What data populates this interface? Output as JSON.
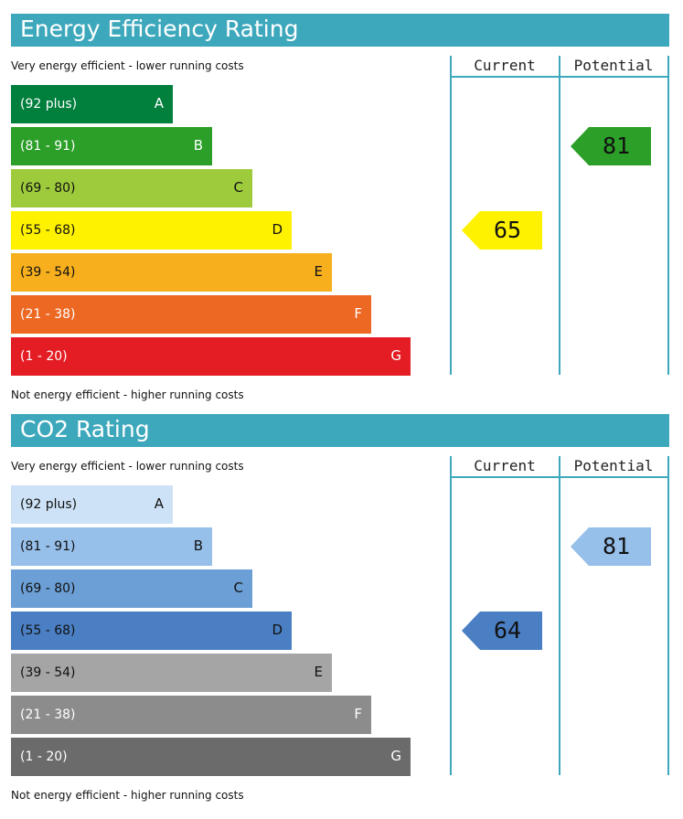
{
  "chart_data": [
    {
      "type": "bar",
      "title": "Energy Efficiency Rating",
      "caption_top": "Very energy efficient - lower running costs",
      "caption_bottom": "Not energy efficient - higher running costs",
      "columns": {
        "current": "Current",
        "potential": "Potential"
      },
      "bands": [
        {
          "range": "(92 plus)",
          "letter": "A",
          "color": "#007f3d",
          "text": "#ffffff"
        },
        {
          "range": "(81 - 91)",
          "letter": "B",
          "color": "#2c9f29",
          "text": "#ffffff"
        },
        {
          "range": "(69 - 80)",
          "letter": "C",
          "color": "#9dcb3c",
          "text": "#111111"
        },
        {
          "range": "(55 - 68)",
          "letter": "D",
          "color": "#fff200",
          "text": "#111111"
        },
        {
          "range": "(39 - 54)",
          "letter": "E",
          "color": "#f7af1d",
          "text": "#111111"
        },
        {
          "range": "(21 - 38)",
          "letter": "F",
          "color": "#ed6823",
          "text": "#ffffff"
        },
        {
          "range": "(1 - 20)",
          "letter": "G",
          "color": "#e31d23",
          "text": "#ffffff"
        }
      ],
      "current": {
        "value": 65,
        "band": "D",
        "color": "#fff200"
      },
      "potential": {
        "value": 81,
        "band": "B",
        "color": "#2c9f29"
      }
    },
    {
      "type": "bar",
      "title": "CO2 Rating",
      "caption_top": "Very energy efficient - lower running costs",
      "caption_bottom": "Not energy efficient - higher running costs",
      "columns": {
        "current": "Current",
        "potential": "Potential"
      },
      "bands": [
        {
          "range": "(92 plus)",
          "letter": "A",
          "color": "#cde2f6",
          "text": "#111111"
        },
        {
          "range": "(81 - 91)",
          "letter": "B",
          "color": "#96bfea",
          "text": "#111111"
        },
        {
          "range": "(69 - 80)",
          "letter": "C",
          "color": "#6c9fd6",
          "text": "#111111"
        },
        {
          "range": "(55 - 68)",
          "letter": "D",
          "color": "#4a7fc3",
          "text": "#111111"
        },
        {
          "range": "(39 - 54)",
          "letter": "E",
          "color": "#a5a5a5",
          "text": "#111111"
        },
        {
          "range": "(21 - 38)",
          "letter": "F",
          "color": "#8c8c8c",
          "text": "#ffffff"
        },
        {
          "range": "(1 - 20)",
          "letter": "G",
          "color": "#6b6b6b",
          "text": "#ffffff"
        }
      ],
      "current": {
        "value": 64,
        "band": "D",
        "color": "#4a7fc3"
      },
      "potential": {
        "value": 81,
        "band": "B",
        "color": "#96bfea"
      }
    }
  ]
}
